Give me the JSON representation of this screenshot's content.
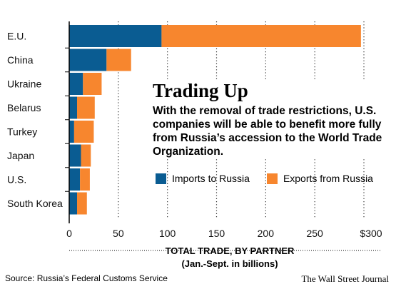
{
  "chart_data": {
    "type": "bar",
    "stacked": true,
    "orientation": "horizontal",
    "title": "Trading Up",
    "subtitle": "With the removal of trade restrictions, U.S. companies will be able to benefit more fully from Russia’s accession to the World Trade Organization.",
    "categories": [
      "E.U.",
      "China",
      "Ukraine",
      "Belarus",
      "Turkey",
      "Japan",
      "U.S.",
      "South Korea"
    ],
    "series": [
      {
        "name": "Imports to Russia",
        "color": "#0a5c92",
        "values": [
          94,
          38,
          14,
          8,
          5,
          12,
          11,
          8
        ]
      },
      {
        "name": "Exports from Russia",
        "color": "#f7862e",
        "values": [
          203,
          25,
          19,
          18,
          20,
          10,
          10,
          10
        ]
      }
    ],
    "xlim": [
      0,
      300
    ],
    "xticks": [
      0,
      50,
      100,
      150,
      200,
      250,
      300
    ],
    "xtick_labels": [
      "0",
      "50",
      "100",
      "150",
      "200",
      "250",
      "$300"
    ],
    "xlabel_line1": "TOTAL TRADE, BY PARTNER",
    "xlabel_line2": "(Jan.-Sept. in billions)",
    "grid": "vertical dotted",
    "legend": "inside, middle-right"
  },
  "footer": {
    "source": "Source: Russia’s Federal Customs Service",
    "credit": "The Wall Street Journal"
  }
}
